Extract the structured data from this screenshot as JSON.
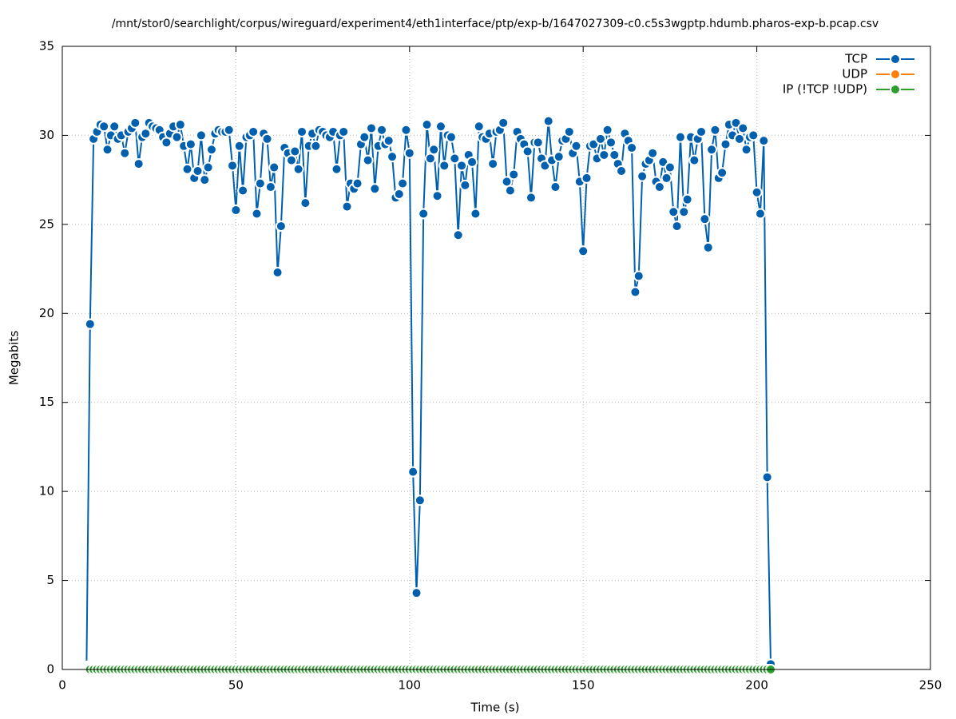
{
  "chart_data": {
    "type": "line",
    "title": "/mnt/stor0/searchlight/corpus/wireguard/experiment4/eth1interface/ptp/exp-b/1647027309-c0.c5s3wgptp.hdumb.pharos-exp-b.pcap.csv",
    "xlabel": "Time (s)",
    "ylabel": "Megabits",
    "xlim": [
      0,
      250
    ],
    "xticks": [
      0,
      50,
      100,
      150,
      200,
      250
    ],
    "ylim": [
      0,
      35
    ],
    "yticks": [
      0,
      5,
      10,
      15,
      20,
      25,
      30,
      35
    ],
    "grid": true,
    "legend": "top-right",
    "x": [
      7,
      8,
      9,
      10,
      11,
      12,
      13,
      14,
      15,
      16,
      17,
      18,
      19,
      20,
      21,
      22,
      23,
      24,
      25,
      26,
      27,
      28,
      29,
      30,
      31,
      32,
      33,
      34,
      35,
      36,
      37,
      38,
      39,
      40,
      41,
      42,
      43,
      44,
      45,
      46,
      47,
      48,
      49,
      50,
      51,
      52,
      53,
      54,
      55,
      56,
      57,
      58,
      59,
      60,
      61,
      62,
      63,
      64,
      65,
      66,
      67,
      68,
      69,
      70,
      71,
      72,
      73,
      74,
      75,
      76,
      77,
      78,
      79,
      80,
      81,
      82,
      83,
      84,
      85,
      86,
      87,
      88,
      89,
      90,
      91,
      92,
      93,
      94,
      95,
      96,
      97,
      98,
      99,
      100,
      101,
      102,
      103,
      104,
      105,
      106,
      107,
      108,
      109,
      110,
      111,
      112,
      113,
      114,
      115,
      116,
      117,
      118,
      119,
      120,
      121,
      122,
      123,
      124,
      125,
      126,
      127,
      128,
      129,
      130,
      131,
      132,
      133,
      134,
      135,
      136,
      137,
      138,
      139,
      140,
      141,
      142,
      143,
      144,
      145,
      146,
      147,
      148,
      149,
      150,
      151,
      152,
      153,
      154,
      155,
      156,
      157,
      158,
      159,
      160,
      161,
      162,
      163,
      164,
      165,
      166,
      167,
      168,
      169,
      170,
      171,
      172,
      173,
      174,
      175,
      176,
      177,
      178,
      179,
      180,
      181,
      182,
      183,
      184,
      185,
      186,
      187,
      188,
      189,
      190,
      191,
      192,
      193,
      194,
      195,
      196,
      197,
      198,
      199,
      200,
      201,
      202,
      203,
      204
    ],
    "series": [
      {
        "name": "TCP",
        "color": "#0060ad",
        "values": [
          0.5,
          19.4,
          29.8,
          30.2,
          30.6,
          30.5,
          29.2,
          30.0,
          30.5,
          29.8,
          30.0,
          29.0,
          30.2,
          30.4,
          30.7,
          28.4,
          29.9,
          30.1,
          30.7,
          30.5,
          30.4,
          30.3,
          29.9,
          29.6,
          30.1,
          30.5,
          29.9,
          30.6,
          29.4,
          28.1,
          29.5,
          27.6,
          28.0,
          30.0,
          27.5,
          28.2,
          29.2,
          30.1,
          30.3,
          30.2,
          30.2,
          30.3,
          28.3,
          25.8,
          29.4,
          26.9,
          29.9,
          30.0,
          30.2,
          25.6,
          27.3,
          30.1,
          29.8,
          27.1,
          28.2,
          22.3,
          24.9,
          29.3,
          29.0,
          28.6,
          29.1,
          28.1,
          30.2,
          26.2,
          29.4,
          30.1,
          29.4,
          30.3,
          30.2,
          30.0,
          29.9,
          30.2,
          28.1,
          30.0,
          30.2,
          26.0,
          27.3,
          27.0,
          27.3,
          29.5,
          29.9,
          28.6,
          30.4,
          27.0,
          29.4,
          30.3,
          29.5,
          29.7,
          28.8,
          26.5,
          26.7,
          27.3,
          30.3,
          29.0,
          11.1,
          4.3,
          9.5,
          25.6,
          30.6,
          28.7,
          29.2,
          26.6,
          30.5,
          28.3,
          30.0,
          29.9,
          28.7,
          24.4,
          28.3,
          27.2,
          28.9,
          28.5,
          25.6,
          30.5,
          29.9,
          29.8,
          30.1,
          28.4,
          30.2,
          30.3,
          30.7,
          27.4,
          26.9,
          27.8,
          30.2,
          29.8,
          29.5,
          29.1,
          26.5,
          29.6,
          29.6,
          28.7,
          28.3,
          30.8,
          28.6,
          27.1,
          28.8,
          29.7,
          29.8,
          30.2,
          29.0,
          29.4,
          27.4,
          23.5,
          27.6,
          29.4,
          29.5,
          28.7,
          29.8,
          28.9,
          30.3,
          29.6,
          28.9,
          28.4,
          28.0,
          30.1,
          29.7,
          29.3,
          21.2,
          22.1,
          27.7,
          28.4,
          28.6,
          29.0,
          27.4,
          27.1,
          28.5,
          27.6,
          28.2,
          25.7,
          24.9,
          29.9,
          25.7,
          26.4,
          29.9,
          28.6,
          29.8,
          30.2,
          25.3,
          23.7,
          29.2,
          30.3,
          27.6,
          27.9,
          29.5,
          30.6,
          30.0,
          30.7,
          29.8,
          30.4,
          29.2,
          29.9,
          30.0,
          26.8,
          25.6,
          29.7,
          10.8,
          0.3
        ]
      },
      {
        "name": "UDP",
        "color": "#ff7f0e",
        "values": [
          0,
          0,
          0,
          0,
          0,
          0,
          0,
          0,
          0,
          0,
          0,
          0,
          0,
          0,
          0,
          0,
          0,
          0,
          0,
          0,
          0,
          0,
          0,
          0,
          0,
          0,
          0,
          0,
          0,
          0,
          0,
          0,
          0,
          0,
          0,
          0,
          0,
          0,
          0,
          0,
          0,
          0,
          0,
          0,
          0,
          0,
          0,
          0,
          0,
          0,
          0,
          0,
          0,
          0,
          0,
          0,
          0,
          0,
          0,
          0,
          0,
          0,
          0,
          0,
          0,
          0,
          0,
          0,
          0,
          0,
          0,
          0,
          0,
          0,
          0,
          0,
          0,
          0,
          0,
          0,
          0,
          0,
          0,
          0,
          0,
          0,
          0,
          0,
          0,
          0,
          0,
          0,
          0,
          0,
          0,
          0,
          0,
          0,
          0,
          0,
          0,
          0,
          0,
          0,
          0,
          0,
          0,
          0,
          0,
          0,
          0,
          0,
          0,
          0,
          0,
          0,
          0,
          0,
          0,
          0,
          0,
          0,
          0,
          0,
          0,
          0,
          0,
          0,
          0,
          0,
          0,
          0,
          0,
          0,
          0,
          0,
          0,
          0,
          0,
          0,
          0,
          0,
          0,
          0,
          0,
          0,
          0,
          0,
          0,
          0,
          0,
          0,
          0,
          0,
          0,
          0,
          0,
          0,
          0,
          0,
          0,
          0,
          0,
          0,
          0,
          0,
          0,
          0,
          0,
          0,
          0,
          0,
          0,
          0,
          0,
          0,
          0,
          0,
          0,
          0,
          0,
          0,
          0,
          0,
          0,
          0,
          0,
          0,
          0,
          0,
          0,
          0,
          0,
          0,
          0,
          0,
          0,
          0
        ]
      },
      {
        "name": "IP (!TCP  !UDP)",
        "color": "#2ca02c",
        "values": [
          0,
          0,
          0,
          0,
          0,
          0,
          0,
          0,
          0,
          0,
          0,
          0,
          0,
          0,
          0,
          0,
          0,
          0,
          0,
          0,
          0,
          0,
          0,
          0,
          0,
          0,
          0,
          0,
          0,
          0,
          0,
          0,
          0,
          0,
          0,
          0,
          0,
          0,
          0,
          0,
          0,
          0,
          0,
          0,
          0,
          0,
          0,
          0,
          0,
          0,
          0,
          0,
          0,
          0,
          0,
          0,
          0,
          0,
          0,
          0,
          0,
          0,
          0,
          0,
          0,
          0,
          0,
          0,
          0,
          0,
          0,
          0,
          0,
          0,
          0,
          0,
          0,
          0,
          0,
          0,
          0,
          0,
          0,
          0,
          0,
          0,
          0,
          0,
          0,
          0,
          0,
          0,
          0,
          0,
          0,
          0,
          0,
          0,
          0,
          0,
          0,
          0,
          0,
          0,
          0,
          0,
          0,
          0,
          0,
          0,
          0,
          0,
          0,
          0,
          0,
          0,
          0,
          0,
          0,
          0,
          0,
          0,
          0,
          0,
          0,
          0,
          0,
          0,
          0,
          0,
          0,
          0,
          0,
          0,
          0,
          0,
          0,
          0,
          0,
          0,
          0,
          0,
          0,
          0,
          0,
          0,
          0,
          0,
          0,
          0,
          0,
          0,
          0,
          0,
          0,
          0,
          0,
          0,
          0,
          0,
          0,
          0,
          0,
          0,
          0,
          0,
          0,
          0,
          0,
          0,
          0,
          0,
          0,
          0,
          0,
          0,
          0,
          0,
          0,
          0,
          0,
          0,
          0,
          0,
          0,
          0,
          0,
          0,
          0,
          0,
          0,
          0,
          0,
          0,
          0,
          0,
          0,
          0
        ]
      }
    ]
  }
}
